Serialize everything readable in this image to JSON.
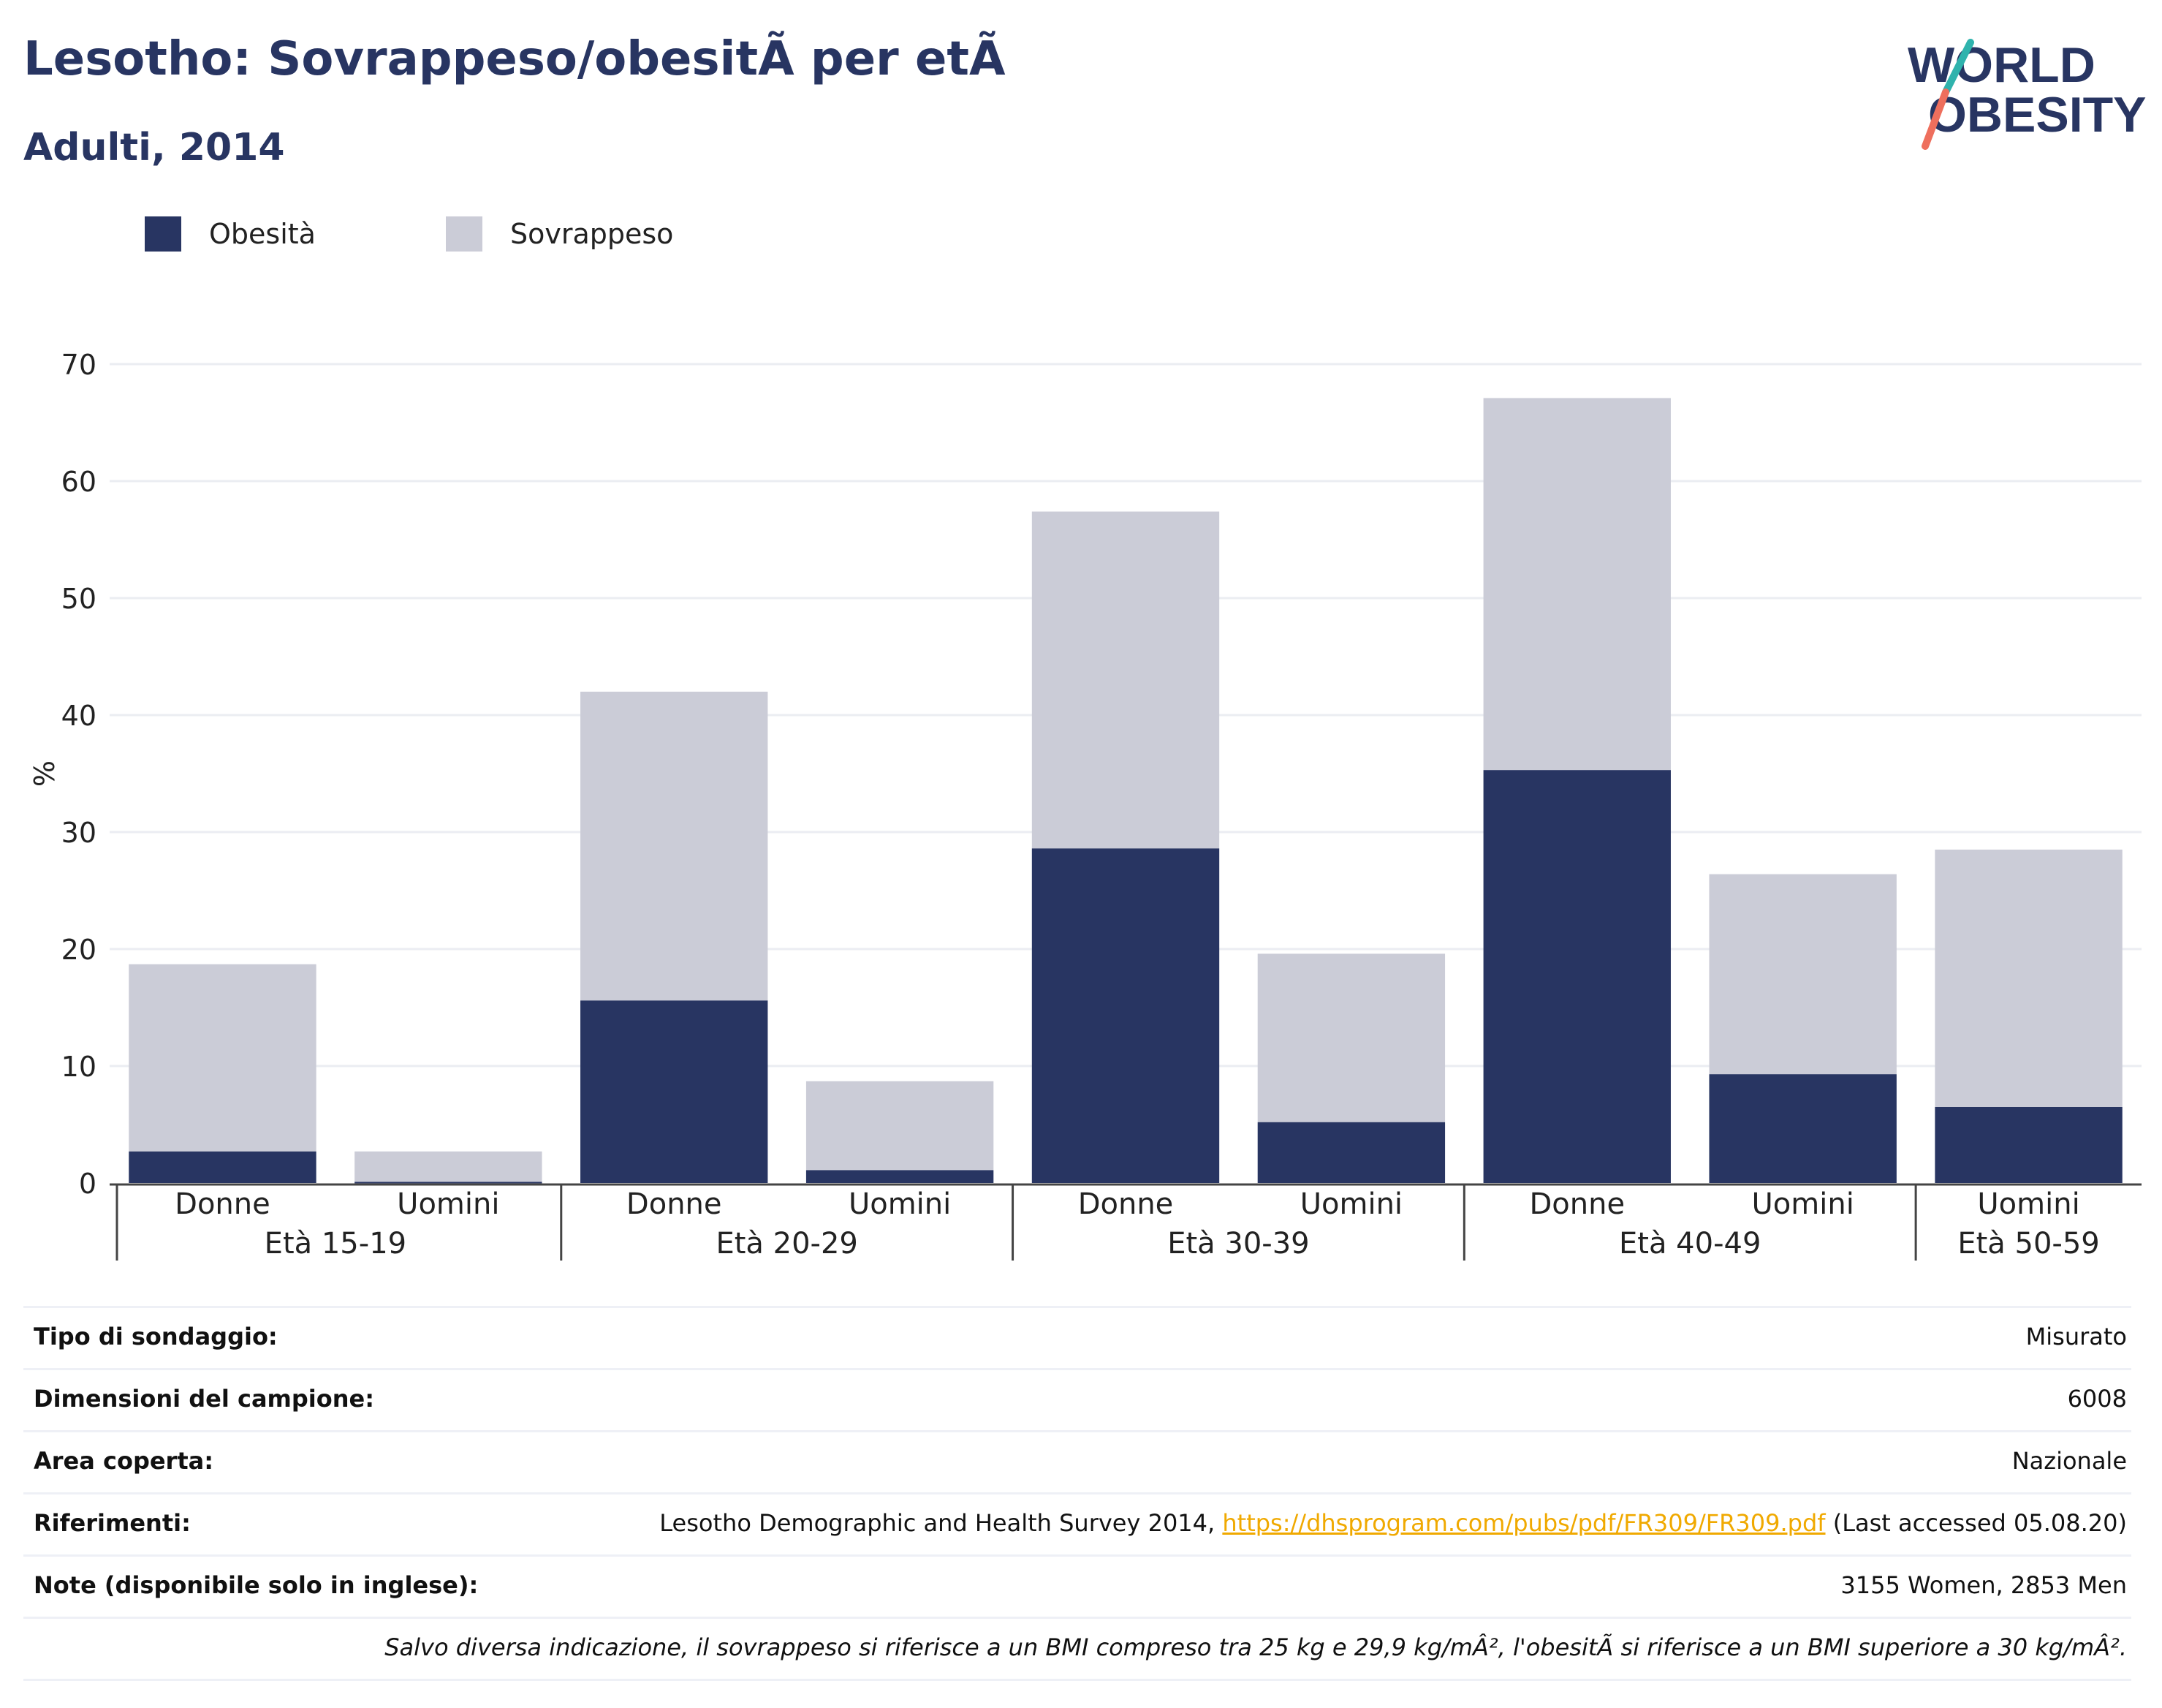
{
  "header": {
    "title": "Lesotho: Sovrappeso/obesitÃ  per etÃ",
    "subtitle": "Adulti, 2014"
  },
  "logo": {
    "line1": "WORLD",
    "line2": "OBESITY"
  },
  "colors": {
    "obesity": "#283562",
    "overweight": "#cbccd7",
    "accent_teal": "#2fb3ad",
    "accent_coral": "#ee6f5d",
    "link": "#f0a900"
  },
  "legend": [
    {
      "label": "Obesità",
      "color": "#283562"
    },
    {
      "label": "Sovrappeso",
      "color": "#cbccd7"
    }
  ],
  "chart_data": {
    "type": "bar",
    "stacked": true,
    "ylabel": "%",
    "ylim": [
      0,
      70
    ],
    "yticks": [
      0,
      10,
      20,
      30,
      40,
      50,
      60,
      70
    ],
    "grid": true,
    "legend_position": "top-left",
    "groups": [
      {
        "label": "Età 15-19",
        "bars": [
          "Donne",
          "Uomini"
        ]
      },
      {
        "label": "Età 20-29",
        "bars": [
          "Donne",
          "Uomini"
        ]
      },
      {
        "label": "Età 30-39",
        "bars": [
          "Donne",
          "Uomini"
        ]
      },
      {
        "label": "Età 40-49",
        "bars": [
          "Donne",
          "Uomini"
        ]
      },
      {
        "label": "Età 50-59",
        "bars": [
          "Uomini"
        ]
      }
    ],
    "categories": [
      "Donne",
      "Uomini",
      "Donne",
      "Uomini",
      "Donne",
      "Uomini",
      "Donne",
      "Uomini",
      "Uomini"
    ],
    "series": [
      {
        "name": "Obesità",
        "values": [
          2.7,
          0.1,
          15.6,
          1.1,
          28.6,
          5.2,
          35.3,
          9.3,
          6.5
        ]
      },
      {
        "name": "Sovrappeso",
        "values": [
          16.0,
          2.6,
          26.4,
          7.6,
          28.8,
          14.4,
          31.8,
          17.1,
          22.0
        ]
      }
    ]
  },
  "meta": [
    {
      "label": "Tipo di sondaggio:",
      "value": "Misurato"
    },
    {
      "label": "Dimensioni del campione:",
      "value": "6008"
    },
    {
      "label": "Area coperta:",
      "value": "Nazionale"
    },
    {
      "label": "Riferimenti:",
      "value_pre": "Lesotho Demographic and Health Survey 2014, ",
      "link": "https://dhsprogram.com/pubs/pdf/FR309/FR309.pdf",
      "value_post": " (Last accessed 05.08.20)"
    },
    {
      "label": "Note (disponibile solo in inglese):",
      "value": "3155 Women, 2853 Men"
    }
  ],
  "footnote": "Salvo diversa indicazione, il sovrappeso si riferisce a un BMI compreso tra 25 kg e 29,9 kg/mÂ², l'obesitÃ  si riferisce a un BMI superiore a 30 kg/mÂ²."
}
